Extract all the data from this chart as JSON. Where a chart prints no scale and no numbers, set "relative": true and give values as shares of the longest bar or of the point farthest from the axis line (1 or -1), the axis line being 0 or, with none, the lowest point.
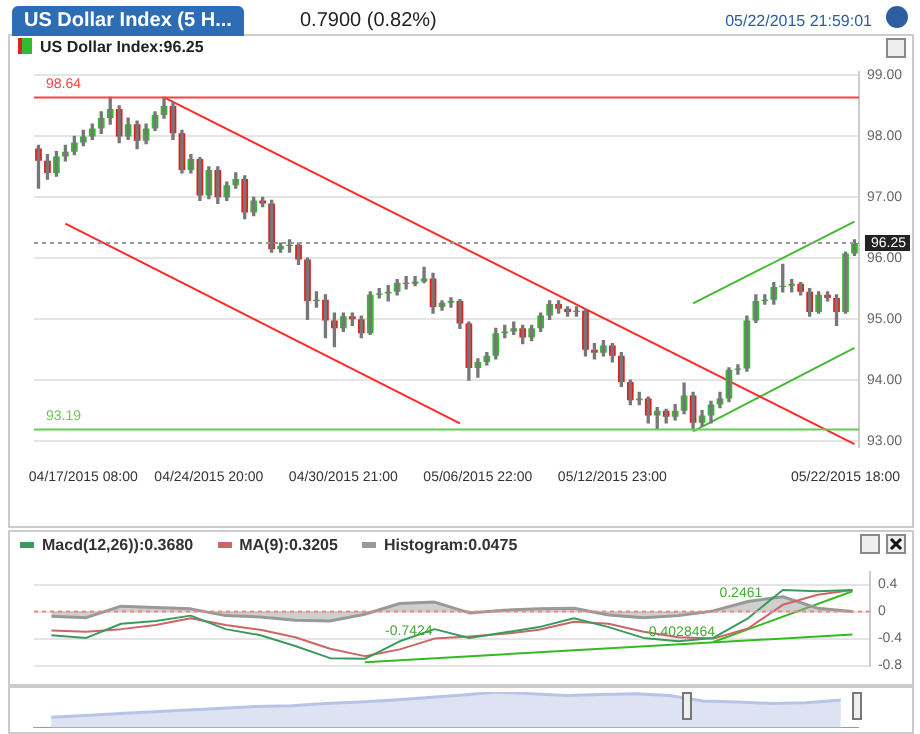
{
  "chart_data": [
    {
      "type": "candlestick",
      "title": "US Dollar Index (5 H...",
      "subtitle": "0.7900 (0.82%)",
      "annotations": [
        "US Dollar Index:96.25",
        "05/22/2015 21:59:01"
      ],
      "categories": [
        null,
        null,
        null,
        null,
        null,
        "04/17/2015 08:00",
        null,
        null,
        null,
        null,
        null,
        null,
        null,
        null,
        null,
        null,
        null,
        null,
        null,
        "04/24/2015 20:00",
        null,
        null,
        null,
        null,
        null,
        null,
        null,
        null,
        null,
        null,
        null,
        null,
        null,
        null,
        "04/30/2015 21:00",
        null,
        null,
        null,
        null,
        null,
        null,
        null,
        null,
        null,
        null,
        null,
        null,
        null,
        null,
        "05/06/2015 22:00",
        null,
        null,
        null,
        null,
        null,
        null,
        null,
        null,
        null,
        null,
        null,
        null,
        null,
        null,
        "05/12/2015 23:00",
        null,
        null,
        null,
        null,
        null,
        null,
        null,
        null,
        null,
        null,
        null,
        null,
        null,
        null,
        null,
        null,
        null,
        null,
        null,
        null,
        null,
        null,
        null,
        null,
        null,
        "05/22/2015 18:00",
        null
      ],
      "ohlc": [
        [
          97.8,
          97.85,
          97.15,
          97.6
        ],
        [
          97.6,
          97.7,
          97.3,
          97.4
        ],
        [
          97.4,
          97.75,
          97.35,
          97.67
        ],
        [
          97.67,
          97.85,
          97.6,
          97.75
        ],
        [
          97.75,
          98.0,
          97.7,
          97.9
        ],
        [
          97.9,
          98.1,
          97.85,
          98.0
        ],
        [
          98.0,
          98.2,
          97.95,
          98.13
        ],
        [
          98.13,
          98.4,
          98.05,
          98.3
        ],
        [
          98.3,
          98.64,
          98.2,
          98.45
        ],
        [
          98.45,
          98.5,
          97.9,
          98.0
        ],
        [
          98.0,
          98.3,
          97.95,
          98.2
        ],
        [
          98.2,
          98.25,
          97.8,
          97.93
        ],
        [
          97.93,
          98.2,
          97.88,
          98.13
        ],
        [
          98.13,
          98.4,
          98.1,
          98.35
        ],
        [
          98.35,
          98.64,
          98.3,
          98.5
        ],
        [
          98.5,
          98.55,
          97.95,
          98.05
        ],
        [
          98.05,
          98.1,
          97.4,
          97.45
        ],
        [
          97.45,
          97.7,
          97.4,
          97.63
        ],
        [
          97.63,
          97.65,
          96.95,
          97.03
        ],
        [
          97.03,
          97.5,
          96.98,
          97.45
        ],
        [
          97.45,
          97.5,
          96.9,
          97.0
        ],
        [
          97.0,
          97.25,
          96.95,
          97.2
        ],
        [
          97.2,
          97.4,
          97.15,
          97.3
        ],
        [
          97.3,
          97.35,
          96.65,
          96.75
        ],
        [
          96.75,
          97.0,
          96.7,
          96.95
        ],
        [
          96.95,
          97.0,
          96.85,
          96.9
        ],
        [
          96.9,
          96.95,
          96.1,
          96.15
        ],
        [
          96.15,
          96.25,
          96.1,
          96.2
        ],
        [
          96.2,
          96.3,
          96.1,
          96.22
        ],
        [
          96.22,
          96.25,
          95.9,
          95.98
        ],
        [
          95.98,
          96.0,
          95.0,
          95.3
        ],
        [
          95.3,
          95.45,
          95.2,
          95.32
        ],
        [
          95.32,
          95.4,
          94.7,
          94.98
        ],
        [
          94.98,
          95.1,
          94.55,
          94.85
        ],
        [
          94.85,
          95.1,
          94.8,
          95.05
        ],
        [
          95.05,
          95.1,
          94.9,
          95.0
        ],
        [
          95.0,
          95.05,
          94.7,
          94.77
        ],
        [
          94.77,
          95.45,
          94.75,
          95.4
        ],
        [
          95.4,
          95.5,
          95.35,
          95.42
        ],
        [
          95.42,
          95.55,
          95.3,
          95.45
        ],
        [
          95.45,
          95.65,
          95.4,
          95.6
        ],
        [
          95.6,
          95.7,
          95.5,
          95.58
        ],
        [
          95.58,
          95.7,
          95.55,
          95.62
        ],
        [
          95.62,
          95.85,
          95.6,
          95.67
        ],
        [
          95.67,
          95.75,
          95.1,
          95.2
        ],
        [
          95.2,
          95.3,
          95.15,
          95.27
        ],
        [
          95.27,
          95.35,
          95.2,
          95.3
        ],
        [
          95.3,
          95.32,
          94.85,
          94.93
        ],
        [
          94.93,
          94.95,
          94.0,
          94.2
        ],
        [
          94.2,
          94.35,
          94.05,
          94.3
        ],
        [
          94.3,
          94.45,
          94.25,
          94.4
        ],
        [
          94.4,
          94.85,
          94.35,
          94.77
        ],
        [
          94.77,
          94.9,
          94.7,
          94.8
        ],
        [
          94.8,
          94.95,
          94.75,
          94.85
        ],
        [
          94.85,
          94.9,
          94.6,
          94.7
        ],
        [
          94.7,
          94.9,
          94.65,
          94.85
        ],
        [
          94.85,
          95.1,
          94.8,
          95.06
        ],
        [
          95.06,
          95.3,
          95.0,
          95.25
        ],
        [
          95.25,
          95.3,
          95.1,
          95.17
        ],
        [
          95.17,
          95.2,
          95.05,
          95.12
        ],
        [
          95.12,
          95.2,
          95.05,
          95.14
        ],
        [
          95.14,
          95.15,
          94.4,
          94.5
        ],
        [
          94.5,
          94.6,
          94.35,
          94.45
        ],
        [
          94.45,
          94.65,
          94.4,
          94.57
        ],
        [
          94.57,
          94.6,
          94.3,
          94.4
        ],
        [
          94.4,
          94.45,
          93.9,
          93.97
        ],
        [
          93.97,
          94.0,
          93.6,
          93.67
        ],
        [
          93.67,
          93.8,
          93.6,
          93.7
        ],
        [
          93.7,
          93.72,
          93.3,
          93.42
        ],
        [
          93.42,
          93.55,
          93.2,
          93.5
        ],
        [
          93.5,
          93.52,
          93.3,
          93.4
        ],
        [
          93.4,
          93.6,
          93.35,
          93.5
        ],
        [
          93.5,
          93.95,
          93.45,
          93.75
        ],
        [
          93.75,
          93.8,
          93.19,
          93.3
        ],
        [
          93.3,
          93.5,
          93.25,
          93.42
        ],
        [
          93.42,
          93.65,
          93.3,
          93.6
        ],
        [
          93.6,
          93.8,
          93.55,
          93.7
        ],
        [
          93.7,
          94.2,
          93.65,
          94.17
        ],
        [
          94.17,
          94.25,
          94.1,
          94.19
        ],
        [
          94.19,
          95.05,
          94.15,
          94.98
        ],
        [
          94.98,
          95.4,
          94.95,
          95.3
        ],
        [
          95.3,
          95.4,
          95.25,
          95.32
        ],
        [
          95.32,
          95.6,
          95.25,
          95.53
        ],
        [
          95.53,
          95.9,
          95.45,
          95.55
        ],
        [
          95.55,
          95.65,
          95.45,
          95.58
        ],
        [
          95.58,
          95.6,
          95.4,
          95.45
        ],
        [
          95.45,
          95.5,
          95.05,
          95.12
        ],
        [
          95.12,
          95.45,
          95.1,
          95.4
        ],
        [
          95.4,
          95.45,
          95.3,
          95.35
        ],
        [
          95.35,
          95.4,
          94.9,
          95.12
        ],
        [
          95.12,
          96.1,
          95.1,
          96.08
        ],
        [
          96.08,
          96.3,
          96.05,
          96.25
        ]
      ],
      "series": [
        {
          "type": "line",
          "color": "#ff2a2a",
          "values": [
            null,
            null,
            null,
            null,
            null,
            null,
            null,
            null,
            null,
            null,
            null,
            null,
            null,
            null,
            98.64,
            null,
            null,
            null,
            null,
            null,
            null,
            null,
            null,
            null,
            null,
            null,
            null,
            null,
            null,
            null,
            null,
            null,
            null,
            null,
            null,
            null,
            null,
            null,
            null,
            null,
            null,
            null,
            null,
            null,
            null,
            null,
            null,
            null,
            null,
            null,
            null,
            null,
            null,
            null,
            null,
            null,
            null,
            null,
            null,
            null,
            null,
            null,
            null,
            null,
            null,
            null,
            null,
            null,
            null,
            null,
            null,
            null,
            null,
            null,
            null,
            null,
            null,
            null,
            null,
            null,
            null,
            null,
            null,
            null,
            null,
            null,
            null,
            null,
            null,
            null,
            null,
            92.95
          ]
        },
        {
          "type": "line",
          "color": "#ff2a2a",
          "values": [
            null,
            null,
            null,
            96.57,
            null,
            null,
            null,
            null,
            null,
            null,
            null,
            null,
            null,
            null,
            null,
            null,
            null,
            null,
            null,
            null,
            null,
            null,
            null,
            null,
            null,
            null,
            null,
            null,
            null,
            null,
            null,
            null,
            null,
            null,
            null,
            null,
            null,
            null,
            null,
            null,
            null,
            null,
            null,
            null,
            null,
            null,
            null,
            93.29,
            null,
            null,
            null,
            null,
            null,
            null,
            null,
            null,
            null,
            null,
            null,
            null,
            null,
            null,
            null,
            null,
            null,
            null,
            null,
            null,
            null,
            null,
            null,
            null,
            null,
            null,
            null,
            null,
            null,
            null,
            null,
            null,
            null,
            null,
            null,
            null,
            null,
            null,
            null,
            null,
            null,
            null,
            null,
            null
          ]
        },
        {
          "type": "line",
          "color": "#44bb33",
          "values": [
            null,
            null,
            null,
            null,
            null,
            null,
            null,
            null,
            null,
            null,
            null,
            null,
            null,
            null,
            null,
            null,
            null,
            null,
            null,
            null,
            null,
            null,
            null,
            null,
            null,
            null,
            null,
            null,
            null,
            null,
            null,
            null,
            null,
            null,
            null,
            null,
            null,
            null,
            null,
            null,
            null,
            null,
            null,
            null,
            null,
            null,
            null,
            null,
            null,
            null,
            null,
            null,
            null,
            null,
            null,
            null,
            null,
            null,
            null,
            null,
            null,
            null,
            null,
            null,
            null,
            null,
            null,
            null,
            null,
            null,
            null,
            null,
            null,
            95.26,
            null,
            null,
            null,
            null,
            null,
            null,
            null,
            null,
            null,
            null,
            null,
            null,
            null,
            null,
            null,
            null,
            null,
            96.6
          ]
        },
        {
          "type": "line",
          "color": "#44bb33",
          "values": [
            null,
            null,
            null,
            null,
            null,
            null,
            null,
            null,
            null,
            null,
            null,
            null,
            null,
            null,
            null,
            null,
            null,
            null,
            null,
            null,
            null,
            null,
            null,
            null,
            null,
            null,
            null,
            null,
            null,
            null,
            null,
            null,
            null,
            null,
            null,
            null,
            null,
            null,
            null,
            null,
            null,
            null,
            null,
            null,
            null,
            null,
            null,
            null,
            null,
            null,
            null,
            null,
            null,
            null,
            null,
            null,
            null,
            null,
            null,
            null,
            null,
            null,
            null,
            null,
            null,
            null,
            null,
            null,
            null,
            null,
            null,
            null,
            null,
            93.16,
            null,
            null,
            null,
            null,
            null,
            null,
            null,
            null,
            null,
            null,
            null,
            null,
            null,
            null,
            null,
            null,
            null,
            94.53
          ]
        }
      ],
      "ref_lines": [
        {
          "axis": "y",
          "value": 98.64,
          "label": "98.64",
          "color": "#ff4040",
          "line_style": "solid"
        },
        {
          "axis": "y",
          "value": 93.19,
          "label": "93.19",
          "color": "#66cc55",
          "line_style": "solid"
        },
        {
          "axis": "y",
          "value": 96.25,
          "label": "96.25",
          "color": "#999999",
          "line_style": "dotted"
        }
      ],
      "ylim": [
        92.9,
        99.05
      ],
      "yticks": [
        {
          "value": 93,
          "label": "93.00"
        },
        {
          "value": 94,
          "label": "94.00"
        },
        {
          "value": 95,
          "label": "95.00"
        },
        {
          "value": 96,
          "label": "96.00"
        },
        {
          "value": 97,
          "label": "97.00"
        },
        {
          "value": 98,
          "label": "98.00"
        },
        {
          "value": 99,
          "label": "99.00"
        }
      ],
      "grid": "y"
    },
    {
      "type": "line",
      "legend": "top left",
      "annotations": [
        "-0.7424",
        "-0.4028464",
        "0.2461"
      ],
      "categories": [
        null,
        null,
        null,
        null,
        null,
        null,
        null,
        null,
        null,
        null,
        null,
        null,
        null,
        null,
        null,
        null,
        null,
        null,
        null,
        null,
        null,
        null,
        null,
        null
      ],
      "series": [
        {
          "name": "Macd(12,26)):0.3680",
          "type": "line",
          "color": "#3c9a5f",
          "values": [
            -0.35,
            -0.39,
            -0.18,
            -0.14,
            -0.06,
            -0.26,
            -0.35,
            -0.51,
            -0.69,
            -0.7,
            -0.44,
            -0.26,
            -0.39,
            -0.31,
            -0.23,
            -0.1,
            -0.23,
            -0.39,
            -0.44,
            -0.39,
            -0.1,
            0.32,
            0.3,
            0.32
          ]
        },
        {
          "name": "MA(9):0.3205",
          "type": "line",
          "color": "#cc6666",
          "values": [
            -0.28,
            -0.3,
            -0.26,
            -0.2,
            -0.1,
            -0.2,
            -0.27,
            -0.38,
            -0.55,
            -0.66,
            -0.56,
            -0.4,
            -0.37,
            -0.33,
            -0.27,
            -0.15,
            -0.18,
            -0.3,
            -0.38,
            -0.4,
            -0.25,
            0.1,
            0.25,
            0.32
          ]
        },
        {
          "name": "Histogram:0.0475",
          "type": "area",
          "color": "#999999",
          "values": [
            -0.07,
            -0.09,
            0.08,
            0.06,
            0.04,
            -0.06,
            -0.08,
            -0.13,
            -0.14,
            -0.04,
            0.12,
            0.14,
            -0.02,
            0.02,
            0.04,
            0.05,
            -0.05,
            -0.09,
            -0.06,
            0.01,
            0.15,
            0.22,
            0.05,
            0.0
          ]
        },
        {
          "type": "line",
          "color": "#33bb22",
          "values": [
            null,
            null,
            null,
            null,
            null,
            null,
            null,
            null,
            null,
            -0.75,
            null,
            null,
            null,
            null,
            null,
            null,
            null,
            null,
            null,
            null,
            null,
            null,
            null,
            -0.34
          ]
        },
        {
          "type": "line",
          "color": "#33bb22",
          "values": [
            null,
            null,
            null,
            null,
            null,
            null,
            null,
            null,
            null,
            null,
            null,
            null,
            null,
            null,
            null,
            null,
            null,
            null,
            null,
            -0.45,
            null,
            null,
            null,
            0.3
          ]
        }
      ],
      "ref_lines": [
        {
          "axis": "y",
          "value": 0,
          "color": "#ee8888",
          "line_style": "dotted"
        }
      ],
      "ylim": [
        -0.8,
        0.58
      ],
      "yticks": [
        -0.8,
        -0.4,
        0,
        0.4
      ],
      "grid": "y"
    },
    {
      "type": "area",
      "relative": true,
      "categories": [
        null,
        null,
        null,
        null,
        null,
        null,
        null,
        null,
        null,
        null,
        null,
        null,
        null,
        null,
        null,
        null,
        null,
        null,
        null,
        null,
        null,
        null,
        null,
        null
      ],
      "series": [
        {
          "color": "#b8c4e6",
          "values": [
            0.3,
            0.35,
            0.4,
            0.45,
            0.5,
            0.55,
            0.6,
            0.62,
            0.68,
            0.72,
            0.78,
            0.85,
            0.92,
            1,
            0.95,
            0.9,
            0.93,
            0.95,
            0.9,
            0.75,
            0.72,
            0.68,
            0.7,
            0.78
          ]
        }
      ]
    }
  ]
}
